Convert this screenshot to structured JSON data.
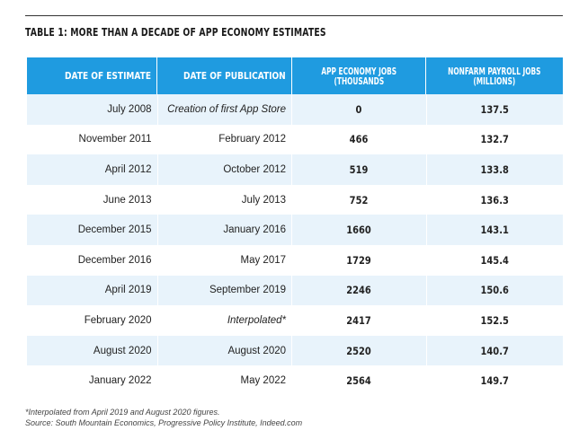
{
  "title": "TABLE 1: MORE THAN A DECADE OF APP ECONOMY ESTIMATES",
  "columns": [
    {
      "line1": "DATE OF ESTIMATE",
      "line2": ""
    },
    {
      "line1": "DATE OF PUBLICATION",
      "line2": ""
    },
    {
      "line1": "APP ECONOMY JOBS",
      "line2": "(THOUSANDS"
    },
    {
      "line1": "NONFARM PAYROLL JOBS",
      "line2": "(MILLIONS)"
    }
  ],
  "rows": [
    {
      "estimate": "July 2008",
      "publication": "Creation of first App Store",
      "pub_italic": true,
      "app_jobs": "0",
      "payroll": "137.5"
    },
    {
      "estimate": "November 2011",
      "publication": "February 2012",
      "pub_italic": false,
      "app_jobs": "466",
      "payroll": "132.7"
    },
    {
      "estimate": "April 2012",
      "publication": "October 2012",
      "pub_italic": false,
      "app_jobs": "519",
      "payroll": "133.8"
    },
    {
      "estimate": "June 2013",
      "publication": "July 2013",
      "pub_italic": false,
      "app_jobs": "752",
      "payroll": "136.3"
    },
    {
      "estimate": "December 2015",
      "publication": "January 2016",
      "pub_italic": false,
      "app_jobs": "1660",
      "payroll": "143.1"
    },
    {
      "estimate": "December 2016",
      "publication": "May 2017",
      "pub_italic": false,
      "app_jobs": "1729",
      "payroll": "145.4"
    },
    {
      "estimate": "April 2019",
      "publication": "September 2019",
      "pub_italic": false,
      "app_jobs": "2246",
      "payroll": "150.6"
    },
    {
      "estimate": "February 2020",
      "publication": "Interpolated*",
      "pub_italic": true,
      "app_jobs": "2417",
      "payroll": "152.5"
    },
    {
      "estimate": "August 2020",
      "publication": "August 2020",
      "pub_italic": false,
      "app_jobs": "2520",
      "payroll": "140.7"
    },
    {
      "estimate": "January 2022",
      "publication": "May 2022",
      "pub_italic": false,
      "app_jobs": "2564",
      "payroll": "149.7"
    }
  ],
  "footnote": "*Interpolated from April 2019 and August 2020 figures.",
  "source": "Source: South Mountain Economics, Progressive Policy Institute, Indeed.com",
  "colors": {
    "header_bg": "#1f9be0",
    "alt_row_bg": "#e8f3fb"
  }
}
